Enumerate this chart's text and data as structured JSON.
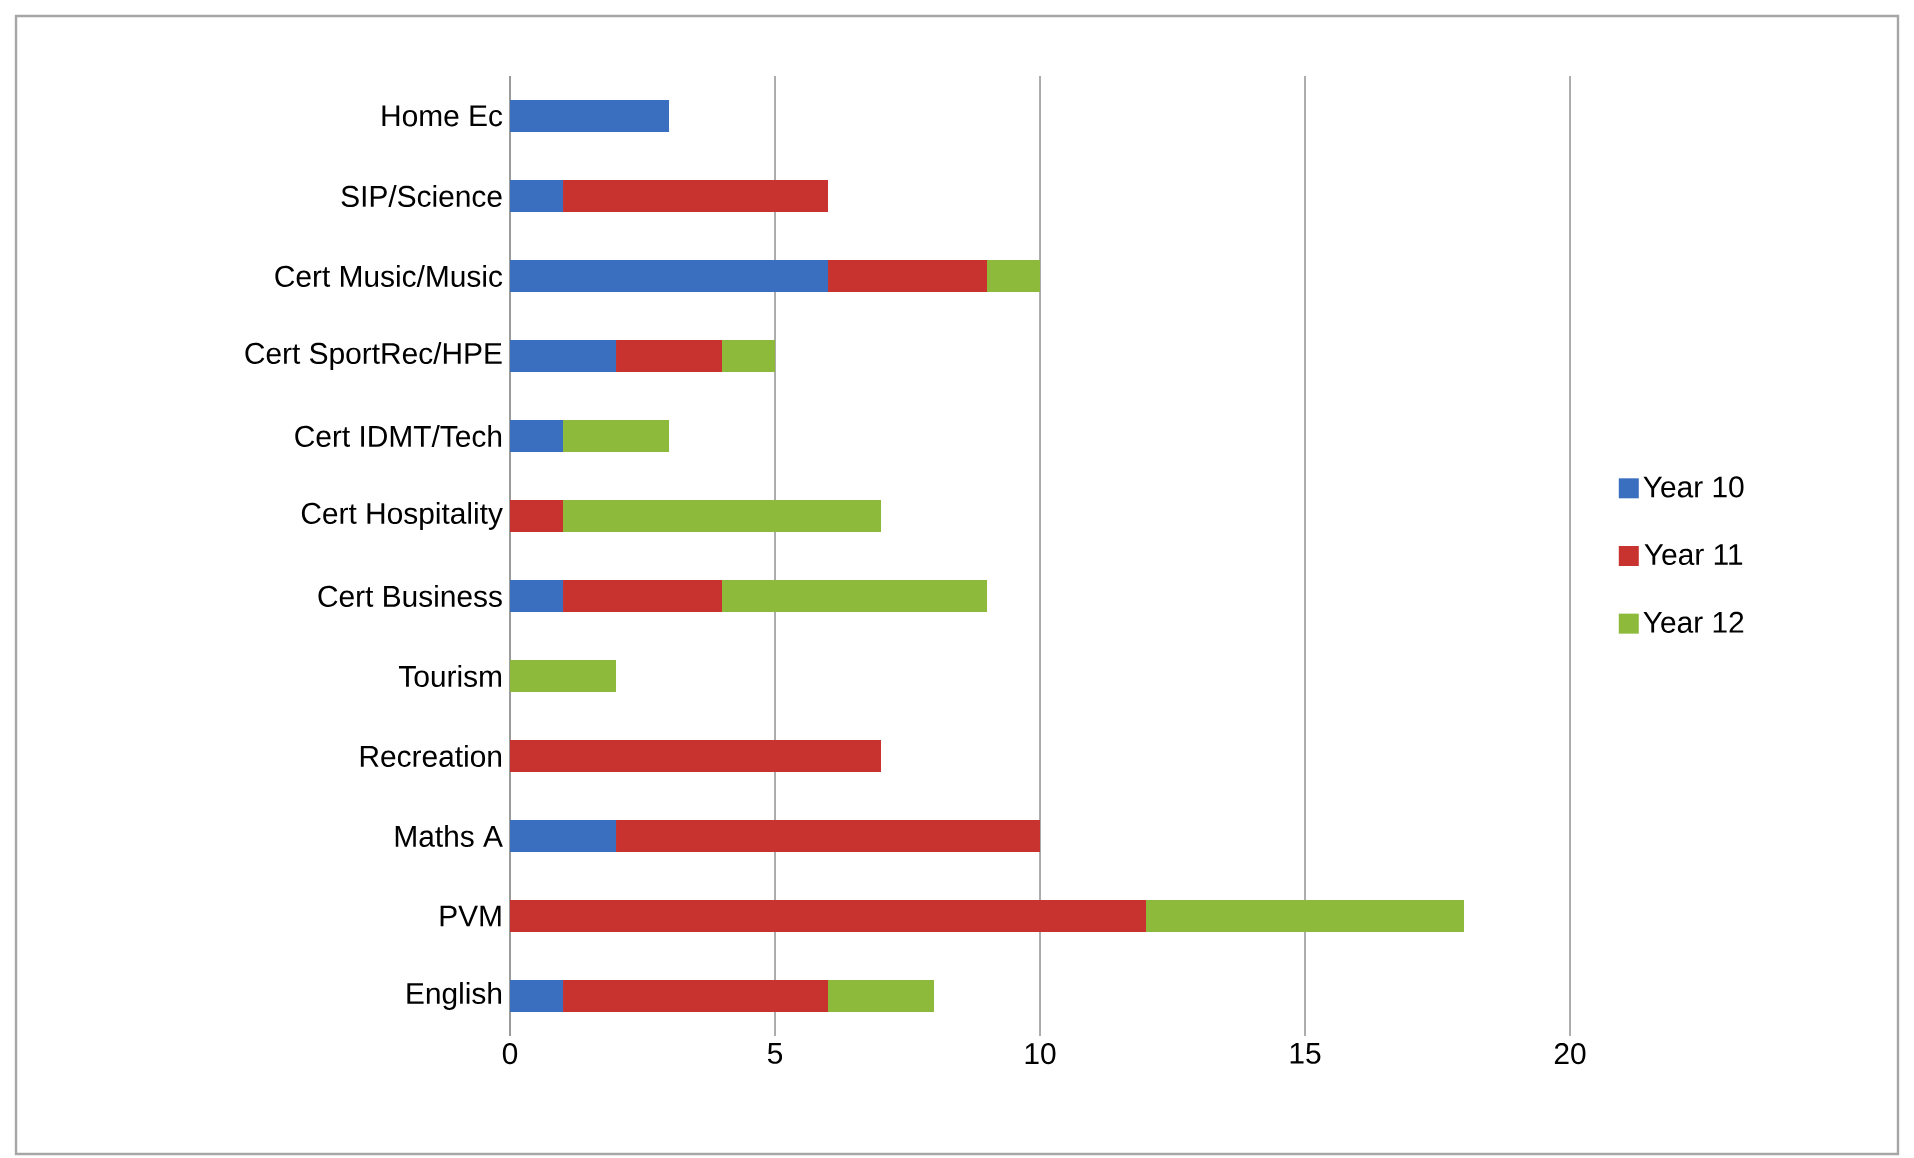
{
  "chart_data": {
    "type": "bar",
    "orientation": "horizontal",
    "stacked": true,
    "categories": [
      "Home Ec",
      "SIP/Science",
      "Cert Music/Music",
      "Cert SportRec/HPE",
      "Cert IDMT/Tech",
      "Cert Hospitality",
      "Cert Business",
      "Tourism",
      "Recreation",
      "Maths A",
      "PVM",
      "English"
    ],
    "series": [
      {
        "name": "Year 10",
        "color": "#3a6fc0",
        "values": [
          3,
          1,
          6,
          2,
          1,
          0,
          1,
          0,
          0,
          2,
          0,
          1
        ]
      },
      {
        "name": "Year 11",
        "color": "#c8332f",
        "values": [
          0,
          5,
          3,
          2,
          0,
          1,
          3,
          0,
          7,
          8,
          12,
          5
        ]
      },
      {
        "name": "Year 12",
        "color": "#8dba3a",
        "values": [
          0,
          0,
          1,
          1,
          2,
          6,
          5,
          2,
          0,
          0,
          6,
          2
        ]
      }
    ],
    "xlim": [
      0,
      20
    ],
    "xticks": [
      0,
      5,
      10,
      15,
      20
    ],
    "grid": "x",
    "legend": "right"
  }
}
